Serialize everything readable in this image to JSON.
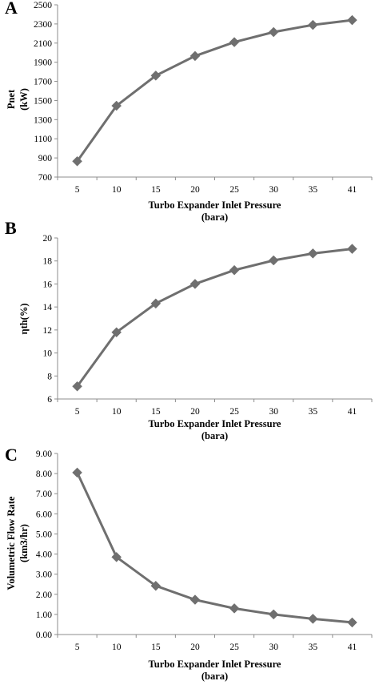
{
  "chart_data": [
    {
      "panel_label": "A",
      "type": "line",
      "categories": [
        "5",
        "10",
        "15",
        "20",
        "25",
        "30",
        "35",
        "41"
      ],
      "series": [
        {
          "values": [
            865,
            1445,
            1760,
            1965,
            2110,
            2215,
            2290,
            2340
          ]
        }
      ],
      "xlabel": "Turbo Expander Inlet Pressure",
      "xlabel_unit": "(bara)",
      "ylabel": "Pnet",
      "ylabel_unit": "(kW)",
      "ylim": [
        700,
        2500
      ],
      "yticks": [
        "700",
        "900",
        "1100",
        "1300",
        "1500",
        "1700",
        "1900",
        "2100",
        "2300",
        "2500"
      ],
      "grid": false,
      "color": "#6f6f6f"
    },
    {
      "panel_label": "B",
      "type": "line",
      "categories": [
        "5",
        "10",
        "15",
        "20",
        "25",
        "30",
        "35",
        "41"
      ],
      "series": [
        {
          "values": [
            7.1,
            11.8,
            14.3,
            16.0,
            17.2,
            18.05,
            18.65,
            19.05
          ]
        }
      ],
      "xlabel": "Turbo Expander Inlet Pressure",
      "xlabel_unit": "(bara)",
      "ylabel": "ηth(%)",
      "ylabel_unit": "",
      "ylim": [
        6,
        20
      ],
      "yticks": [
        "6",
        "8",
        "10",
        "12",
        "14",
        "16",
        "18",
        "20"
      ],
      "grid": false,
      "color": "#6f6f6f"
    },
    {
      "panel_label": "C",
      "type": "line",
      "categories": [
        "5",
        "10",
        "15",
        "20",
        "25",
        "30",
        "35",
        "41"
      ],
      "series": [
        {
          "values": [
            8.05,
            3.85,
            2.42,
            1.73,
            1.3,
            1.0,
            0.78,
            0.6
          ]
        }
      ],
      "xlabel": "Turbo Expander Inlet Pressure",
      "xlabel_unit": "(bara)",
      "ylabel": "Volumetric Flow Rate",
      "ylabel_unit": "(km3/hr)",
      "ylim": [
        0,
        9
      ],
      "yticks": [
        "0.00",
        "1.00",
        "2.00",
        "3.00",
        "4.00",
        "5.00",
        "6.00",
        "7.00",
        "8.00",
        "9.00"
      ],
      "grid": false,
      "color": "#6f6f6f"
    }
  ]
}
